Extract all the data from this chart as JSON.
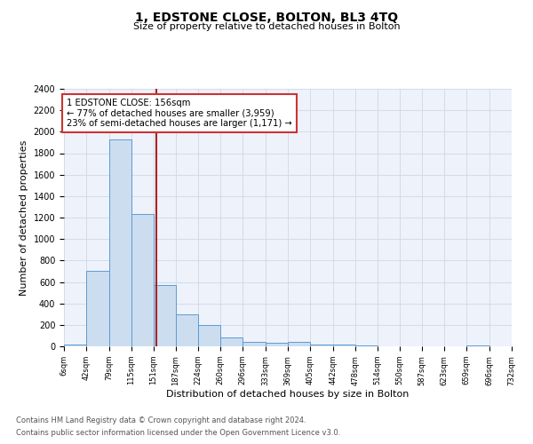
{
  "title": "1, EDSTONE CLOSE, BOLTON, BL3 4TQ",
  "subtitle": "Size of property relative to detached houses in Bolton",
  "xlabel": "Distribution of detached houses by size in Bolton",
  "ylabel": "Number of detached properties",
  "bar_edges": [
    6,
    42,
    79,
    115,
    151,
    187,
    224,
    260,
    296,
    333,
    369,
    405,
    442,
    478,
    514,
    550,
    587,
    623,
    659,
    696,
    732
  ],
  "bar_heights": [
    20,
    700,
    1930,
    1230,
    570,
    300,
    200,
    80,
    45,
    35,
    40,
    15,
    20,
    8,
    0,
    0,
    0,
    0,
    5,
    0
  ],
  "bar_color": "#ccddf0",
  "bar_edgecolor": "#5b9bd5",
  "vline_x": 156,
  "vline_color": "#aa2222",
  "annotation_text": "1 EDSTONE CLOSE: 156sqm\n← 77% of detached houses are smaller (3,959)\n23% of semi-detached houses are larger (1,171) →",
  "annotation_box_edgecolor": "#cc3333",
  "annotation_box_facecolor": "#ffffff",
  "ylim": [
    0,
    2400
  ],
  "yticks": [
    0,
    200,
    400,
    600,
    800,
    1000,
    1200,
    1400,
    1600,
    1800,
    2000,
    2200,
    2400
  ],
  "xtick_labels": [
    "6sqm",
    "42sqm",
    "79sqm",
    "115sqm",
    "151sqm",
    "187sqm",
    "224sqm",
    "260sqm",
    "296sqm",
    "333sqm",
    "369sqm",
    "405sqm",
    "442sqm",
    "478sqm",
    "514sqm",
    "550sqm",
    "587sqm",
    "623sqm",
    "659sqm",
    "696sqm",
    "732sqm"
  ],
  "footer_line1": "Contains HM Land Registry data © Crown copyright and database right 2024.",
  "footer_line2": "Contains public sector information licensed under the Open Government Licence v3.0.",
  "bg_color": "#ffffff",
  "plot_bg_color": "#eef2fa",
  "grid_color": "#d0d8e8",
  "title_fontsize": 10,
  "subtitle_fontsize": 8,
  "ylabel_fontsize": 8,
  "xlabel_fontsize": 8
}
